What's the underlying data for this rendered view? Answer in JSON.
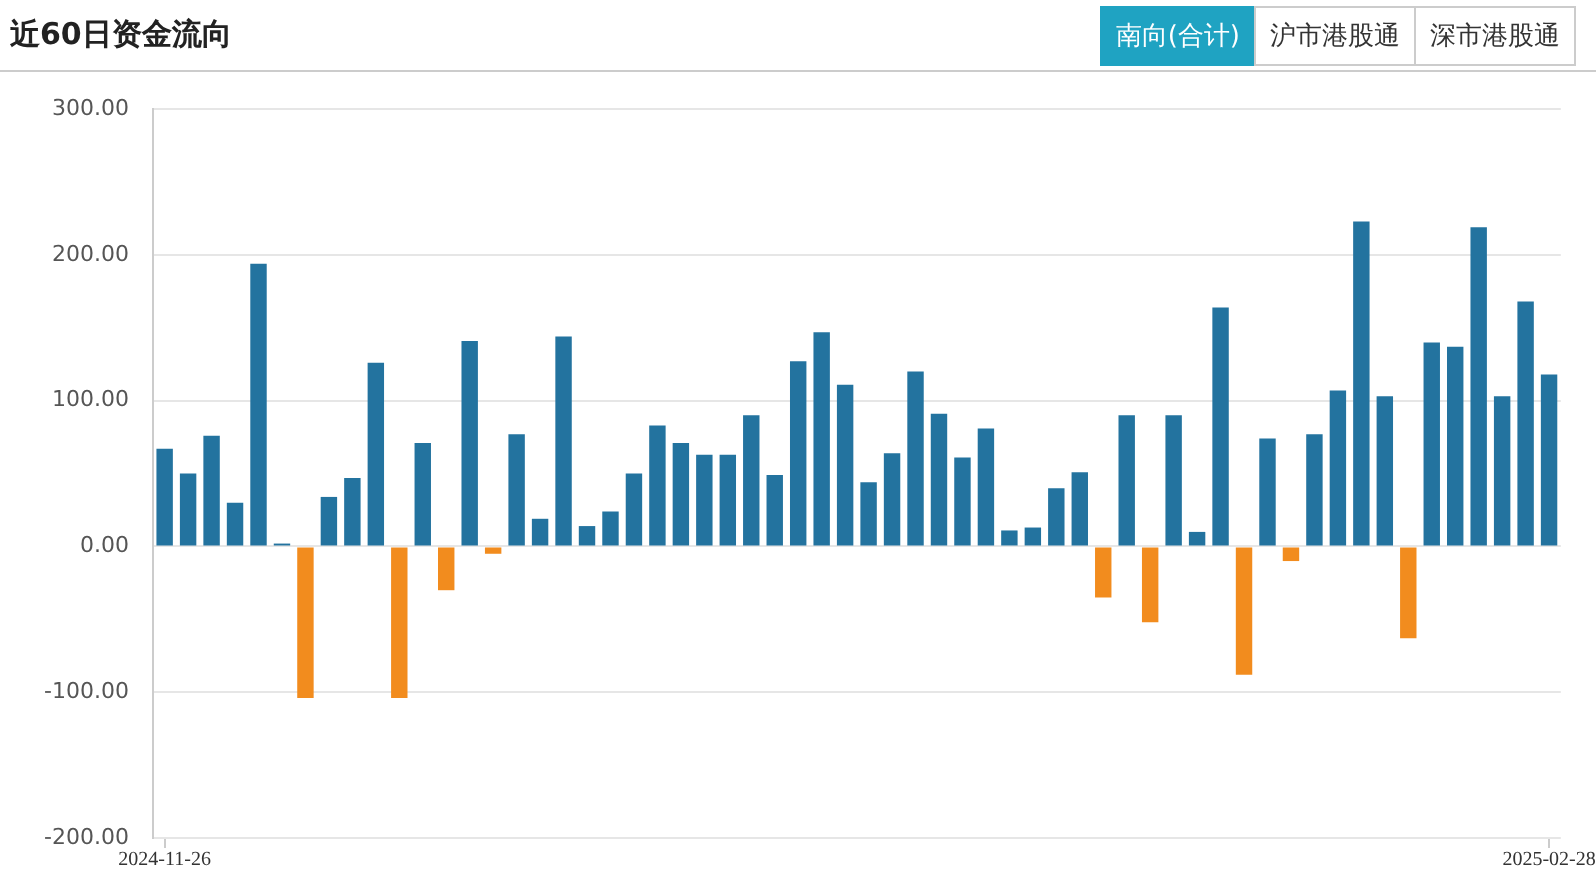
{
  "chart_data": {
    "type": "bar",
    "title": "近60日资金流向",
    "annotations": [
      "南向(合计)",
      "沪市港股通",
      "深市港股通"
    ],
    "categories": [
      "2024-11-26",
      null,
      null,
      null,
      null,
      null,
      null,
      null,
      null,
      null,
      null,
      null,
      null,
      null,
      null,
      null,
      null,
      null,
      null,
      null,
      null,
      null,
      null,
      null,
      null,
      null,
      null,
      null,
      null,
      null,
      null,
      null,
      null,
      null,
      null,
      null,
      null,
      null,
      null,
      null,
      null,
      null,
      null,
      null,
      null,
      null,
      null,
      null,
      null,
      null,
      null,
      null,
      null,
      null,
      null,
      null,
      null,
      null,
      null,
      "2025-02-28"
    ],
    "values": [
      67,
      50,
      76,
      30,
      194,
      2,
      -104,
      34,
      47,
      126,
      -104,
      71,
      -30,
      141,
      -5,
      77,
      19,
      144,
      14,
      24,
      50,
      83,
      71,
      63,
      63,
      90,
      49,
      127,
      147,
      111,
      44,
      64,
      120,
      91,
      61,
      81,
      11,
      13,
      40,
      51,
      -35,
      90,
      -52,
      90,
      10,
      164,
      -88,
      74,
      -10,
      77,
      107,
      223,
      103,
      -63,
      140,
      137,
      219,
      103,
      168,
      118
    ],
    "colors": [
      "#23739f",
      "#23739f",
      "#23739f",
      "#23739f",
      "#23739f",
      "#23739f",
      "#f28c1e",
      "#23739f",
      "#23739f",
      "#23739f",
      "#f28c1e",
      "#23739f",
      "#f28c1e",
      "#23739f",
      "#f28c1e",
      "#23739f",
      "#23739f",
      "#23739f",
      "#23739f",
      "#23739f",
      "#23739f",
      "#23739f",
      "#23739f",
      "#23739f",
      "#23739f",
      "#23739f",
      "#23739f",
      "#23739f",
      "#23739f",
      "#23739f",
      "#23739f",
      "#23739f",
      "#23739f",
      "#23739f",
      "#23739f",
      "#23739f",
      "#23739f",
      "#23739f",
      "#23739f",
      "#23739f",
      "#f28c1e",
      "#23739f",
      "#f28c1e",
      "#23739f",
      "#23739f",
      "#23739f",
      "#f28c1e",
      "#23739f",
      "#f28c1e",
      "#23739f",
      "#23739f",
      "#23739f",
      "#23739f",
      "#f28c1e",
      "#23739f",
      "#23739f",
      "#23739f",
      "#23739f",
      "#23739f",
      "#23739f"
    ],
    "ylim": [
      -200,
      300
    ],
    "yticks": [
      {
        "value": -200,
        "label": "-200.00"
      },
      {
        "value": -100,
        "label": "-100.00"
      },
      {
        "value": 0,
        "label": "0.00"
      },
      {
        "value": 100,
        "label": "100.00"
      },
      {
        "value": 200,
        "label": "200.00"
      },
      {
        "value": 300,
        "label": "300.00"
      }
    ],
    "grid": "y"
  }
}
